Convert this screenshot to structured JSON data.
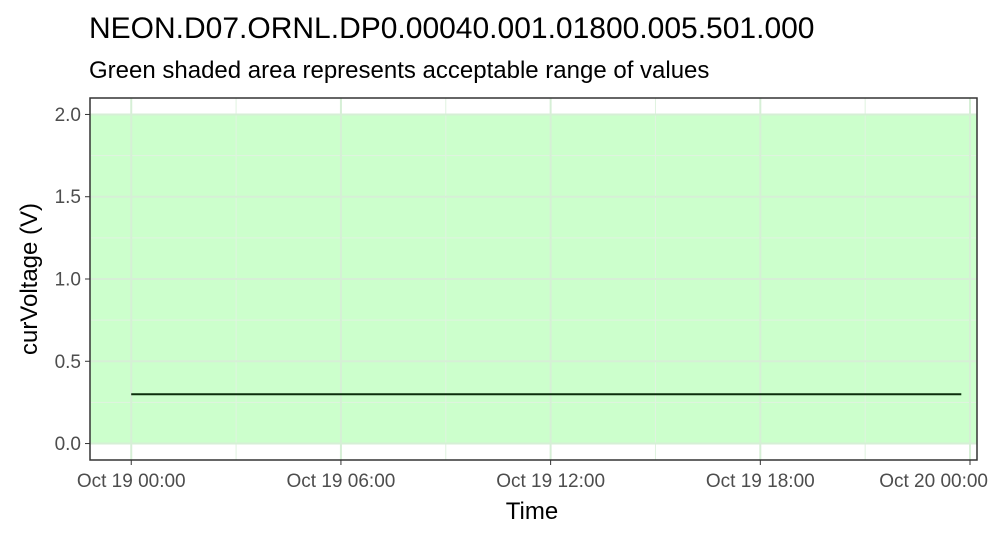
{
  "chart_data": {
    "type": "line",
    "title": "NEON.D07.ORNL.DP0.00040.001.01800.005.501.000",
    "subtitle": "Green shaded area represents acceptable range of values",
    "xlabel": "Time",
    "ylabel": "curVoltage (V)",
    "xlim_hours": [
      -1.18,
      24.2
    ],
    "ylim": [
      -0.1,
      2.1
    ],
    "x_ticks": [
      {
        "hours": 0,
        "label": "Oct 19 00:00"
      },
      {
        "hours": 6,
        "label": "Oct 19 06:00"
      },
      {
        "hours": 12,
        "label": "Oct 19 12:00"
      },
      {
        "hours": 18,
        "label": "Oct 19 18:00"
      },
      {
        "hours": 24,
        "label": "Oct 20 00:00"
      }
    ],
    "y_ticks": [
      {
        "value": 0.0,
        "label": "0.0"
      },
      {
        "value": 0.5,
        "label": "0.5"
      },
      {
        "value": 1.0,
        "label": "1.0"
      },
      {
        "value": 1.5,
        "label": "1.5"
      },
      {
        "value": 2.0,
        "label": "2.0"
      }
    ],
    "acceptable_range": {
      "min": 0.0,
      "max": 2.0
    },
    "series": [
      {
        "name": "curVoltage",
        "x_hours": [
          0.0,
          3.0,
          6.0,
          9.0,
          12.0,
          15.0,
          18.0,
          21.0,
          23.75
        ],
        "values": [
          0.3,
          0.3,
          0.3,
          0.3,
          0.3,
          0.3,
          0.3,
          0.3,
          0.3
        ]
      }
    ],
    "grid": true,
    "colors": {
      "range_fill": "#ccffcc",
      "line": "#0b2e0b",
      "grid_major": "#d6efd6",
      "grid_minor": "#e0f3e0",
      "axis_text": "#4d4d4d",
      "panel_border": "#333333"
    }
  }
}
